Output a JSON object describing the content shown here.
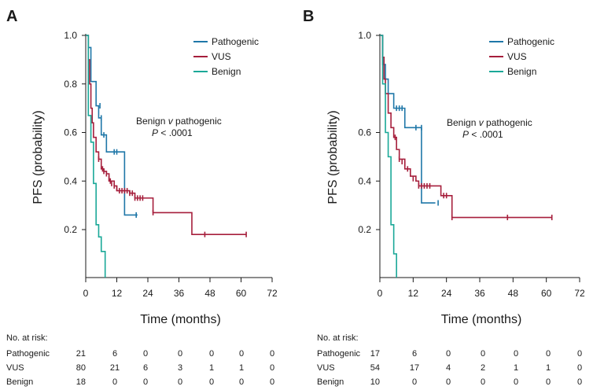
{
  "colors": {
    "pathogenic": "#1f77a8",
    "vus": "#a61f3c",
    "benign": "#1aa898",
    "axis": "#1a1a1a"
  },
  "chart_data": [
    {
      "type": "line",
      "panel": "A",
      "ylabel": "PFS (probability)",
      "xlabel": "Time (months)",
      "xlim": [
        0,
        72
      ],
      "ylim": [
        0,
        1
      ],
      "xticks": [
        0,
        12,
        24,
        36,
        48,
        60,
        72
      ],
      "yticks": [
        0.2,
        0.4,
        0.6,
        0.8,
        1.0
      ],
      "ytick_labels": [
        "0.2",
        "0.4",
        "0.6",
        "0.8",
        "1.0"
      ],
      "ymin_visible": 0.0,
      "annotation": [
        "Benign",
        "v",
        "pathogenic",
        "P",
        "< .0001"
      ],
      "series": [
        {
          "name": "Pathogenic",
          "color_key": "pathogenic",
          "steps": [
            [
              0,
              1.0
            ],
            [
              1,
              0.95
            ],
            [
              2,
              0.81
            ],
            [
              4,
              0.71
            ],
            [
              5,
              0.66
            ],
            [
              6,
              0.59
            ],
            [
              8,
              0.52
            ],
            [
              15,
              0.26
            ],
            [
              20,
              0.26
            ]
          ],
          "censors": [
            [
              5.5,
              0.71
            ],
            [
              6,
              0.66
            ],
            [
              7,
              0.59
            ],
            [
              11,
              0.52
            ],
            [
              12,
              0.52
            ],
            [
              19.5,
              0.26
            ]
          ]
        },
        {
          "name": "VUS",
          "color_key": "vus",
          "steps": [
            [
              0,
              1.0
            ],
            [
              1,
              0.9
            ],
            [
              1.5,
              0.8
            ],
            [
              2,
              0.7
            ],
            [
              2.5,
              0.64
            ],
            [
              3,
              0.58
            ],
            [
              4,
              0.52
            ],
            [
              5,
              0.49
            ],
            [
              6,
              0.45
            ],
            [
              7,
              0.44
            ],
            [
              8,
              0.43
            ],
            [
              9,
              0.4
            ],
            [
              11,
              0.38
            ],
            [
              12,
              0.36
            ],
            [
              17,
              0.35
            ],
            [
              19,
              0.33
            ],
            [
              26,
              0.27
            ],
            [
              41,
              0.18
            ],
            [
              62,
              0.18
            ]
          ],
          "censors": [
            [
              5,
              0.49
            ],
            [
              6.5,
              0.45
            ],
            [
              7,
              0.44
            ],
            [
              8,
              0.43
            ],
            [
              9,
              0.41
            ],
            [
              9.5,
              0.4
            ],
            [
              10,
              0.39
            ],
            [
              11,
              0.38
            ],
            [
              12,
              0.37
            ],
            [
              13,
              0.36
            ],
            [
              14,
              0.36
            ],
            [
              15,
              0.36
            ],
            [
              16,
              0.36
            ],
            [
              17,
              0.35
            ],
            [
              18,
              0.35
            ],
            [
              19,
              0.33
            ],
            [
              20,
              0.33
            ],
            [
              21,
              0.33
            ],
            [
              22,
              0.33
            ],
            [
              26,
              0.27
            ],
            [
              46,
              0.18
            ],
            [
              62,
              0.18
            ]
          ]
        },
        {
          "name": "Benign",
          "color_key": "benign",
          "steps": [
            [
              0,
              1.0
            ],
            [
              1,
              0.67
            ],
            [
              2,
              0.56
            ],
            [
              3,
              0.39
            ],
            [
              4,
              0.22
            ],
            [
              5,
              0.17
            ],
            [
              6,
              0.11
            ],
            [
              7.5,
              0.0
            ]
          ],
          "censors": []
        }
      ],
      "risk_table": {
        "header": "No. at risk:",
        "times": [
          0,
          12,
          24,
          36,
          48,
          60,
          72
        ],
        "rows": [
          {
            "label": "Pathogenic",
            "values": [
              "21",
              "6",
              "0",
              "0",
              "0",
              "0",
              "0"
            ]
          },
          {
            "label": "VUS",
            "values": [
              "80",
              "21",
              "6",
              "3",
              "1",
              "1",
              "0"
            ]
          },
          {
            "label": "Benign",
            "values": [
              "18",
              "0",
              "0",
              "0",
              "0",
              "0",
              "0"
            ]
          }
        ]
      }
    },
    {
      "type": "line",
      "panel": "B",
      "ylabel": "PFS (probability)",
      "xlabel": "Time (months)",
      "xlim": [
        0,
        72
      ],
      "ylim": [
        0,
        1
      ],
      "xticks": [
        0,
        12,
        24,
        36,
        48,
        60,
        72
      ],
      "yticks": [
        0.2,
        0.4,
        0.6,
        1.0
      ],
      "ytick_labels": [
        "0.2",
        "0.4",
        "0.6",
        "1.0"
      ],
      "ymin_visible": 0.0,
      "annotation": [
        "Benign",
        "v",
        "pathogenic",
        "P",
        "< .0001"
      ],
      "series": [
        {
          "name": "Pathogenic",
          "color_key": "pathogenic",
          "steps": [
            [
              0,
              1.0
            ],
            [
              1,
              0.88
            ],
            [
              2,
              0.82
            ],
            [
              3,
              0.76
            ],
            [
              5,
              0.7
            ],
            [
              9,
              0.62
            ],
            [
              15,
              0.31
            ],
            [
              20,
              0.31
            ]
          ],
          "censors": [
            [
              6,
              0.7
            ],
            [
              7,
              0.7
            ],
            [
              8,
              0.7
            ],
            [
              13,
              0.62
            ],
            [
              15,
              0.62
            ],
            [
              21,
              0.31
            ]
          ]
        },
        {
          "name": "VUS",
          "color_key": "vus",
          "steps": [
            [
              0,
              1.0
            ],
            [
              1,
              0.91
            ],
            [
              1.5,
              0.82
            ],
            [
              2,
              0.76
            ],
            [
              3,
              0.68
            ],
            [
              4,
              0.62
            ],
            [
              5,
              0.58
            ],
            [
              6,
              0.53
            ],
            [
              7,
              0.49
            ],
            [
              9,
              0.45
            ],
            [
              11,
              0.42
            ],
            [
              13,
              0.4
            ],
            [
              14,
              0.38
            ],
            [
              22,
              0.34
            ],
            [
              26,
              0.25
            ],
            [
              62,
              0.25
            ]
          ],
          "censors": [
            [
              5.5,
              0.58
            ],
            [
              7,
              0.49
            ],
            [
              8,
              0.48
            ],
            [
              9,
              0.47
            ],
            [
              10,
              0.45
            ],
            [
              12,
              0.41
            ],
            [
              14,
              0.38
            ],
            [
              15,
              0.38
            ],
            [
              16,
              0.38
            ],
            [
              17,
              0.38
            ],
            [
              18,
              0.38
            ],
            [
              23,
              0.34
            ],
            [
              24,
              0.34
            ],
            [
              26,
              0.25
            ],
            [
              46,
              0.25
            ],
            [
              62,
              0.25
            ]
          ]
        },
        {
          "name": "Benign",
          "color_key": "benign",
          "steps": [
            [
              0,
              1.0
            ],
            [
              1,
              0.8
            ],
            [
              2,
              0.6
            ],
            [
              3,
              0.5
            ],
            [
              4,
              0.22
            ],
            [
              5,
              0.1
            ],
            [
              6,
              0.0
            ]
          ],
          "censors": []
        }
      ],
      "risk_table": {
        "header": "No. at risk:",
        "times": [
          0,
          12,
          24,
          36,
          48,
          60,
          72
        ],
        "rows": [
          {
            "label": "Pathogenic",
            "values": [
              "17",
              "6",
              "0",
              "0",
              "0",
              "0",
              "0"
            ]
          },
          {
            "label": "VUS",
            "values": [
              "54",
              "17",
              "4",
              "2",
              "1",
              "1",
              "0"
            ]
          },
          {
            "label": "Benign",
            "values": [
              "10",
              "0",
              "0",
              "0",
              "0",
              "0",
              "0"
            ]
          }
        ]
      }
    }
  ]
}
